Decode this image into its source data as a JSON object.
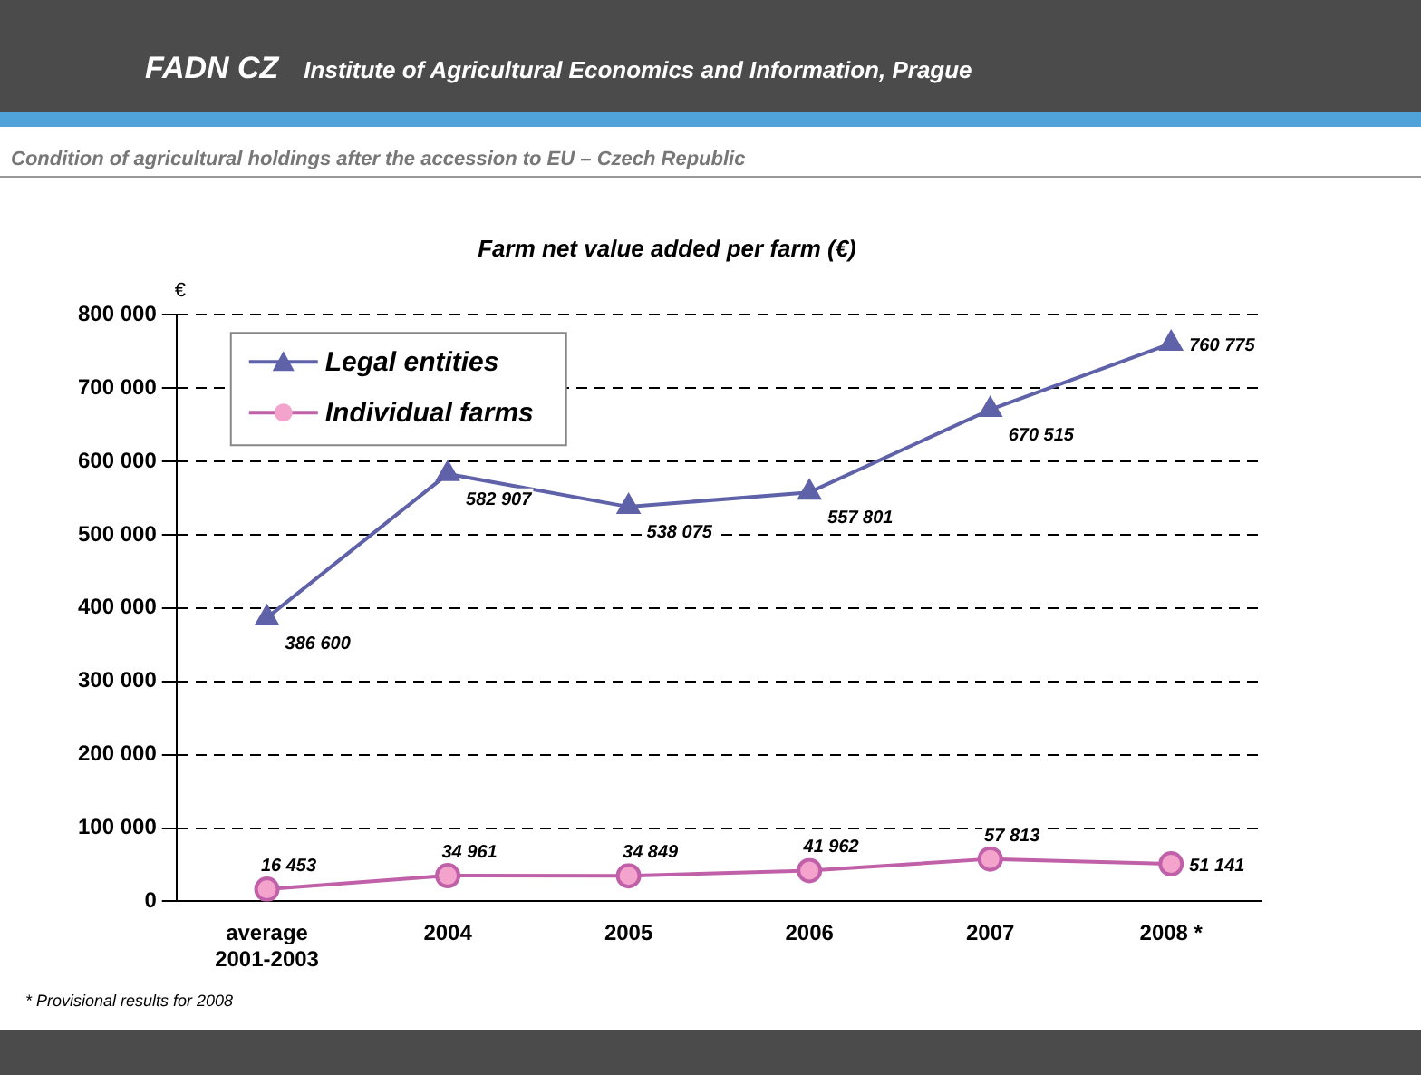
{
  "chart_data": {
    "type": "line",
    "title": "Farm net value added per farm (€)",
    "subtitle": "Condition of agricultural holdings after the accession to EU – Czech Republic",
    "ylabel": "€",
    "annotations": [
      "FADN CZ",
      "Institute of Agricultural Economics and Information, Prague",
      "* Provisional results for 2008"
    ],
    "categories": [
      "average 2001-2003",
      "2004",
      "2005",
      "2006",
      "2007",
      "2008 *"
    ],
    "series": [
      {
        "name": "Legal entities",
        "color": "#5f62a8",
        "marker": "triangle",
        "values": [
          386600,
          582907,
          538075,
          557801,
          670515,
          760775
        ],
        "value_labels": [
          "386 600",
          "582 907",
          "538 075",
          "557 801",
          "670 515",
          "760 775"
        ]
      },
      {
        "name": "Individual farms",
        "color": "#c060a8",
        "marker": "circle",
        "values": [
          16453,
          34961,
          34849,
          41962,
          57813,
          51141
        ],
        "value_labels": [
          "16 453",
          "34 961",
          "34 849",
          "41 962",
          "57 813",
          "51 141"
        ]
      }
    ],
    "ylim": [
      0,
      800000
    ],
    "yticks": [
      {
        "value": 0,
        "label": "0"
      },
      {
        "value": 100000,
        "label": "100 000"
      },
      {
        "value": 200000,
        "label": "200 000"
      },
      {
        "value": 300000,
        "label": "300 000"
      },
      {
        "value": 400000,
        "label": "400 000"
      },
      {
        "value": 500000,
        "label": "500 000"
      },
      {
        "value": 600000,
        "label": "600 000"
      },
      {
        "value": 700000,
        "label": "700 000"
      },
      {
        "value": 800000,
        "label": "800 000"
      }
    ],
    "grid": "y",
    "legend": "top left",
    "line_style": "solid"
  }
}
